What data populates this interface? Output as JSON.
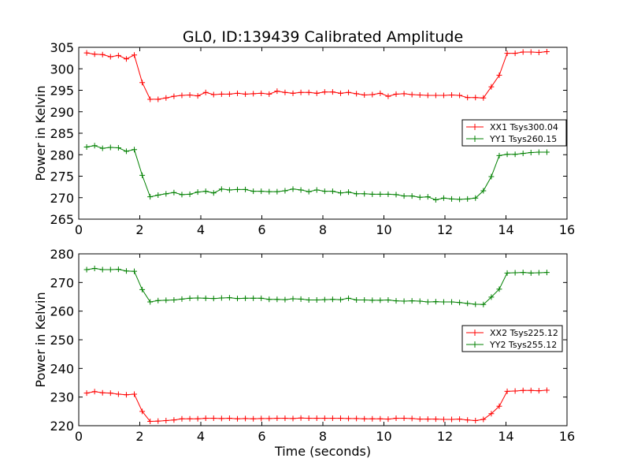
{
  "chart_data": [
    {
      "type": "line",
      "title": "GL0, ID:139439 Calibrated Amplitude",
      "xlabel": "",
      "ylabel": "Power in Kelvin",
      "xlim": [
        0,
        16
      ],
      "ylim": [
        265,
        305
      ],
      "xticks": [
        0,
        2,
        4,
        6,
        8,
        10,
        12,
        14,
        16
      ],
      "yticks": [
        265,
        270,
        275,
        280,
        285,
        290,
        295,
        300,
        305
      ],
      "grid": false,
      "legend": "center-right",
      "x": [
        0.26,
        0.52,
        0.78,
        1.04,
        1.3,
        1.56,
        1.82,
        2.08,
        2.34,
        2.6,
        2.86,
        3.12,
        3.38,
        3.64,
        3.9,
        4.16,
        4.42,
        4.68,
        4.94,
        5.2,
        5.46,
        5.72,
        5.98,
        6.24,
        6.5,
        6.76,
        7.02,
        7.28,
        7.54,
        7.8,
        8.06,
        8.32,
        8.58,
        8.84,
        9.1,
        9.36,
        9.62,
        9.88,
        10.14,
        10.4,
        10.66,
        10.92,
        11.18,
        11.44,
        11.7,
        11.96,
        12.22,
        12.48,
        12.74,
        13.0,
        13.26,
        13.52,
        13.78,
        14.04,
        14.3,
        14.56,
        14.82,
        15.08,
        15.34
      ],
      "series": [
        {
          "name": "XX1 Tsys300.04",
          "color": "#ff0000",
          "values": [
            303.7,
            303.4,
            303.3,
            302.8,
            303.1,
            302.3,
            303.2,
            296.8,
            292.9,
            292.9,
            293.2,
            293.6,
            293.8,
            293.9,
            293.7,
            294.5,
            294.0,
            294.1,
            294.1,
            294.3,
            294.1,
            294.2,
            294.3,
            294.1,
            294.8,
            294.5,
            294.3,
            294.5,
            294.5,
            294.3,
            294.6,
            294.6,
            294.3,
            294.5,
            294.2,
            293.9,
            294.0,
            294.3,
            293.6,
            294.1,
            294.2,
            294.0,
            293.9,
            293.8,
            293.8,
            293.8,
            293.9,
            293.8,
            293.3,
            293.3,
            293.2,
            295.8,
            298.5,
            303.6,
            303.6,
            303.9,
            303.9,
            303.8,
            304.0
          ]
        },
        {
          "name": "YY1 Tsys260.15",
          "color": "#008000",
          "values": [
            281.8,
            282.1,
            281.5,
            281.7,
            281.6,
            280.8,
            281.2,
            275.2,
            270.2,
            270.6,
            270.9,
            271.2,
            270.7,
            270.8,
            271.3,
            271.5,
            271.1,
            272.0,
            271.8,
            271.9,
            271.9,
            271.5,
            271.5,
            271.4,
            271.4,
            271.6,
            272.0,
            271.8,
            271.4,
            271.8,
            271.5,
            271.5,
            271.1,
            271.3,
            270.9,
            270.9,
            270.8,
            270.8,
            270.8,
            270.7,
            270.4,
            270.4,
            270.1,
            270.2,
            269.5,
            269.9,
            269.7,
            269.6,
            269.7,
            269.9,
            271.6,
            274.9,
            279.8,
            280.1,
            280.1,
            280.3,
            280.5,
            280.6,
            280.6
          ]
        }
      ]
    },
    {
      "type": "line",
      "title": "",
      "xlabel": "Time (seconds)",
      "ylabel": "Power in Kelvin",
      "xlim": [
        0,
        16
      ],
      "ylim": [
        220,
        280
      ],
      "xticks": [
        0,
        2,
        4,
        6,
        8,
        10,
        12,
        14,
        16
      ],
      "yticks": [
        220,
        230,
        240,
        250,
        260,
        270,
        280
      ],
      "grid": false,
      "legend": "center-right",
      "x": [
        0.26,
        0.52,
        0.78,
        1.04,
        1.3,
        1.56,
        1.82,
        2.08,
        2.34,
        2.6,
        2.86,
        3.12,
        3.38,
        3.64,
        3.9,
        4.16,
        4.42,
        4.68,
        4.94,
        5.2,
        5.46,
        5.72,
        5.98,
        6.24,
        6.5,
        6.76,
        7.02,
        7.28,
        7.54,
        7.8,
        8.06,
        8.32,
        8.58,
        8.84,
        9.1,
        9.36,
        9.62,
        9.88,
        10.14,
        10.4,
        10.66,
        10.92,
        11.18,
        11.44,
        11.7,
        11.96,
        12.22,
        12.48,
        12.74,
        13.0,
        13.26,
        13.52,
        13.78,
        14.04,
        14.3,
        14.56,
        14.82,
        15.08,
        15.34
      ],
      "series": [
        {
          "name": "XX2 Tsys225.12",
          "color": "#ff0000",
          "values": [
            231.4,
            231.9,
            231.5,
            231.4,
            231.0,
            230.8,
            231.0,
            225.0,
            221.5,
            221.6,
            221.8,
            222.0,
            222.4,
            222.4,
            222.4,
            222.6,
            222.6,
            222.5,
            222.6,
            222.4,
            222.5,
            222.4,
            222.5,
            222.5,
            222.6,
            222.6,
            222.5,
            222.7,
            222.6,
            222.6,
            222.6,
            222.6,
            222.6,
            222.5,
            222.5,
            222.4,
            222.4,
            222.4,
            222.3,
            222.6,
            222.6,
            222.5,
            222.3,
            222.3,
            222.3,
            222.2,
            222.2,
            222.3,
            222.0,
            221.8,
            222.2,
            224.2,
            226.8,
            232.0,
            232.1,
            232.3,
            232.3,
            232.2,
            232.4
          ]
        },
        {
          "name": "YY2 Tsys255.12",
          "color": "#008000",
          "values": [
            274.5,
            274.9,
            274.5,
            274.5,
            274.6,
            274.0,
            273.9,
            267.5,
            263.2,
            263.7,
            263.8,
            263.9,
            264.2,
            264.5,
            264.6,
            264.5,
            264.4,
            264.6,
            264.7,
            264.4,
            264.5,
            264.5,
            264.5,
            264.1,
            264.1,
            264.0,
            264.3,
            264.2,
            263.9,
            263.9,
            264.0,
            264.1,
            264.0,
            264.5,
            263.9,
            263.9,
            263.8,
            263.8,
            263.9,
            263.6,
            263.5,
            263.6,
            263.5,
            263.2,
            263.3,
            263.2,
            263.2,
            263.0,
            262.7,
            262.4,
            262.3,
            264.9,
            267.7,
            273.3,
            273.4,
            273.5,
            273.3,
            273.4,
            273.5
          ]
        }
      ]
    }
  ]
}
